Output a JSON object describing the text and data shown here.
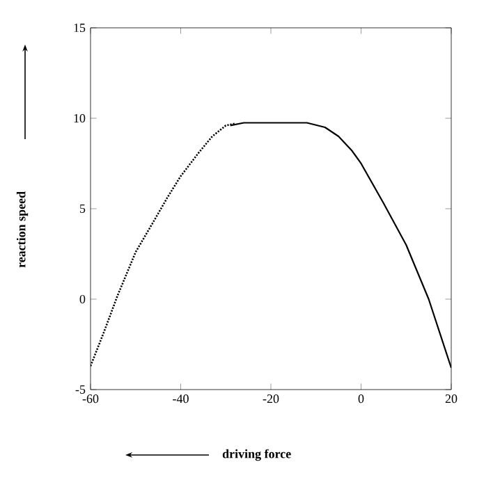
{
  "chart_data": {
    "type": "line",
    "xlabel": "driving force",
    "ylabel": "reaction speed",
    "xlim": [
      -60,
      20
    ],
    "ylim": [
      -5,
      15
    ],
    "xticks": [
      -60,
      -40,
      -20,
      0,
      20
    ],
    "yticks": [
      -5,
      0,
      5,
      10,
      15
    ],
    "grid": false,
    "marker": "none",
    "series": [
      {
        "color": "#000000",
        "line_style": "dotted",
        "x": [
          -60,
          -57,
          -54,
          -50,
          -46,
          -43,
          -40,
          -36,
          -33,
          -30,
          -28
        ],
        "values": [
          -3.7,
          -1.8,
          0.2,
          2.6,
          4.3,
          5.6,
          6.8,
          8.1,
          9.0,
          9.6,
          9.7
        ]
      },
      {
        "color": "#000000",
        "line_style": "solid",
        "x": [
          -29,
          -26,
          -20,
          -12,
          -8,
          -5,
          -2,
          0,
          5,
          10,
          15,
          20
        ],
        "values": [
          9.6,
          9.75,
          9.75,
          9.75,
          9.5,
          9.0,
          8.2,
          7.5,
          5.3,
          3.0,
          0.0,
          -3.8
        ]
      }
    ]
  }
}
